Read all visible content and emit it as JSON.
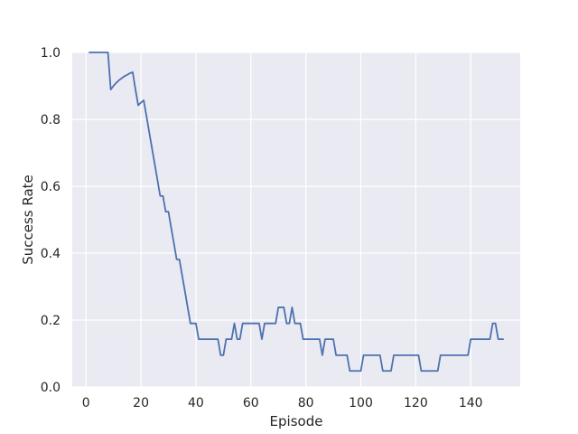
{
  "chart_data": {
    "type": "line",
    "title": "",
    "xlabel": "Episode",
    "ylabel": "Success Rate",
    "xlim": [
      -5,
      158
    ],
    "ylim": [
      0.0,
      1.0
    ],
    "xticks": [
      0,
      20,
      40,
      60,
      80,
      100,
      120,
      140
    ],
    "yticks": [
      0.0,
      0.2,
      0.4,
      0.6,
      0.8,
      1.0
    ],
    "xtick_labels": [
      "0",
      "20",
      "40",
      "60",
      "80",
      "100",
      "120",
      "140"
    ],
    "ytick_labels": [
      "0.0",
      "0.2",
      "0.4",
      "0.6",
      "0.8",
      "1.0"
    ],
    "grid": true,
    "style": {
      "plot_background": "#eaeaf2",
      "grid_color": "#ffffff",
      "line_color": "#4c72b0"
    },
    "series": [
      {
        "points": [
          [
            1,
            1.0
          ],
          [
            2,
            1.0
          ],
          [
            3,
            1.0
          ],
          [
            4,
            1.0
          ],
          [
            5,
            1.0
          ],
          [
            6,
            1.0
          ],
          [
            7,
            1.0
          ],
          [
            8,
            1.0
          ],
          [
            9,
            0.889
          ],
          [
            10,
            0.9
          ],
          [
            11,
            0.909
          ],
          [
            12,
            0.917
          ],
          [
            13,
            0.923
          ],
          [
            14,
            0.929
          ],
          [
            15,
            0.933
          ],
          [
            16,
            0.938
          ],
          [
            17,
            0.941
          ],
          [
            18,
            0.889
          ],
          [
            19,
            0.842
          ],
          [
            20,
            0.85
          ],
          [
            21,
            0.857
          ],
          [
            22,
            0.81
          ],
          [
            23,
            0.762
          ],
          [
            24,
            0.714
          ],
          [
            25,
            0.667
          ],
          [
            26,
            0.619
          ],
          [
            27,
            0.571
          ],
          [
            28,
            0.571
          ],
          [
            29,
            0.524
          ],
          [
            30,
            0.524
          ],
          [
            31,
            0.476
          ],
          [
            32,
            0.429
          ],
          [
            33,
            0.381
          ],
          [
            34,
            0.381
          ],
          [
            35,
            0.333
          ],
          [
            36,
            0.286
          ],
          [
            37,
            0.238
          ],
          [
            38,
            0.19
          ],
          [
            39,
            0.19
          ],
          [
            40,
            0.19
          ],
          [
            41,
            0.143
          ],
          [
            42,
            0.143
          ],
          [
            43,
            0.143
          ],
          [
            44,
            0.143
          ],
          [
            45,
            0.143
          ],
          [
            46,
            0.143
          ],
          [
            47,
            0.143
          ],
          [
            48,
            0.143
          ],
          [
            49,
            0.095
          ],
          [
            50,
            0.095
          ],
          [
            51,
            0.143
          ],
          [
            52,
            0.143
          ],
          [
            53,
            0.143
          ],
          [
            54,
            0.19
          ],
          [
            55,
            0.143
          ],
          [
            56,
            0.143
          ],
          [
            57,
            0.19
          ],
          [
            58,
            0.19
          ],
          [
            59,
            0.19
          ],
          [
            60,
            0.19
          ],
          [
            61,
            0.19
          ],
          [
            62,
            0.19
          ],
          [
            63,
            0.19
          ],
          [
            64,
            0.143
          ],
          [
            65,
            0.19
          ],
          [
            66,
            0.19
          ],
          [
            67,
            0.19
          ],
          [
            68,
            0.19
          ],
          [
            69,
            0.19
          ],
          [
            70,
            0.238
          ],
          [
            71,
            0.238
          ],
          [
            72,
            0.238
          ],
          [
            73,
            0.19
          ],
          [
            74,
            0.19
          ],
          [
            75,
            0.238
          ],
          [
            76,
            0.19
          ],
          [
            77,
            0.19
          ],
          [
            78,
            0.19
          ],
          [
            79,
            0.143
          ],
          [
            80,
            0.143
          ],
          [
            81,
            0.143
          ],
          [
            82,
            0.143
          ],
          [
            83,
            0.143
          ],
          [
            84,
            0.143
          ],
          [
            85,
            0.143
          ],
          [
            86,
            0.095
          ],
          [
            87,
            0.143
          ],
          [
            88,
            0.143
          ],
          [
            89,
            0.143
          ],
          [
            90,
            0.143
          ],
          [
            91,
            0.095
          ],
          [
            92,
            0.095
          ],
          [
            93,
            0.095
          ],
          [
            94,
            0.095
          ],
          [
            95,
            0.095
          ],
          [
            96,
            0.048
          ],
          [
            97,
            0.048
          ],
          [
            98,
            0.048
          ],
          [
            99,
            0.048
          ],
          [
            100,
            0.048
          ],
          [
            101,
            0.095
          ],
          [
            102,
            0.095
          ],
          [
            103,
            0.095
          ],
          [
            104,
            0.095
          ],
          [
            105,
            0.095
          ],
          [
            106,
            0.095
          ],
          [
            107,
            0.095
          ],
          [
            108,
            0.048
          ],
          [
            109,
            0.048
          ],
          [
            110,
            0.048
          ],
          [
            111,
            0.048
          ],
          [
            112,
            0.095
          ],
          [
            113,
            0.095
          ],
          [
            114,
            0.095
          ],
          [
            115,
            0.095
          ],
          [
            116,
            0.095
          ],
          [
            117,
            0.095
          ],
          [
            118,
            0.095
          ],
          [
            119,
            0.095
          ],
          [
            120,
            0.095
          ],
          [
            121,
            0.095
          ],
          [
            122,
            0.048
          ],
          [
            123,
            0.048
          ],
          [
            124,
            0.048
          ],
          [
            125,
            0.048
          ],
          [
            126,
            0.048
          ],
          [
            127,
            0.048
          ],
          [
            128,
            0.048
          ],
          [
            129,
            0.095
          ],
          [
            130,
            0.095
          ],
          [
            131,
            0.095
          ],
          [
            132,
            0.095
          ],
          [
            133,
            0.095
          ],
          [
            134,
            0.095
          ],
          [
            135,
            0.095
          ],
          [
            136,
            0.095
          ],
          [
            137,
            0.095
          ],
          [
            138,
            0.095
          ],
          [
            139,
            0.095
          ],
          [
            140,
            0.143
          ],
          [
            141,
            0.143
          ],
          [
            142,
            0.143
          ],
          [
            143,
            0.143
          ],
          [
            144,
            0.143
          ],
          [
            145,
            0.143
          ],
          [
            146,
            0.143
          ],
          [
            147,
            0.143
          ],
          [
            148,
            0.19
          ],
          [
            149,
            0.19
          ],
          [
            150,
            0.143
          ],
          [
            151,
            0.143
          ],
          [
            152,
            0.143
          ]
        ]
      }
    ]
  }
}
